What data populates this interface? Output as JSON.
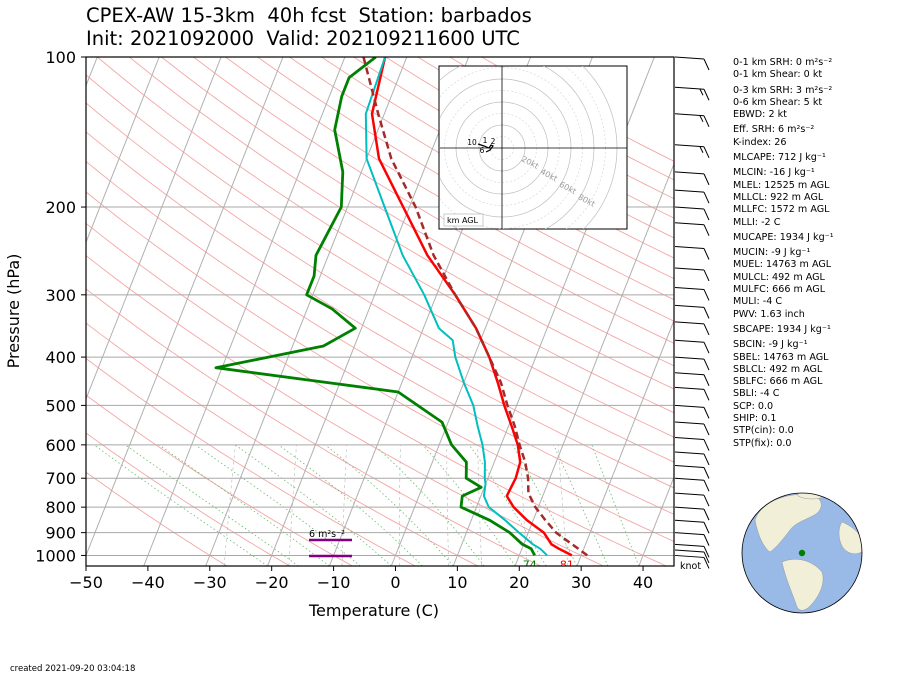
{
  "title": {
    "line1": "CPEX-AW 15-3km  40h fcst  Station: barbados",
    "line2": "Init: 2021092000  Valid: 202109211600 UTC"
  },
  "footer": "created 2021-09-20 03:04:18",
  "stats": [
    "0-1 km SRH: 0 m²s⁻²",
    "0-1 km Shear: 0 kt",
    "0-3 km SRH: 3 m²s⁻²",
    "0-6 km Shear: 5 kt",
    "EBWD: 2 kt",
    "Eff. SRH: 6 m²s⁻²",
    "K-index: 26",
    "MLCAPE: 712 J kg⁻¹",
    "MLCIN: -16 J kg⁻¹",
    "MLEL: 12525 m AGL",
    "MLLCL: 922 m AGL",
    "MLLFC: 1572 m AGL",
    "MLLI: -2 C",
    "MUCAPE: 1934 J kg⁻¹",
    "MUCIN: -9 J kg⁻¹",
    "MUEL: 14763 m AGL",
    "MULCL: 492 m AGL",
    "MULFC: 666 m AGL",
    "MULI: -4 C",
    "PWV: 1.63 inch",
    "SBCAPE: 1934 J kg⁻¹",
    "SBCIN: -9 J kg⁻¹",
    "SBEL: 14763 m AGL",
    "SBLCL: 492 m AGL",
    "SBLFC: 666 m AGL",
    "SBLI: -4 C",
    "SCP: 0.0",
    "SHIP: 0.1",
    "STP(cin): 0.0",
    "STP(fix): 0.0"
  ],
  "chart_data": {
    "type": "line",
    "xlabel": "Temperature (C)",
    "ylabel": "Pressure (hPa)",
    "xlim": [
      -50,
      45
    ],
    "ylim": [
      1050,
      100
    ],
    "y_scale": "log",
    "x_ticks": [
      -50,
      -40,
      -30,
      -20,
      -10,
      0,
      10,
      20,
      30,
      40
    ],
    "y_ticks": [
      100,
      200,
      300,
      400,
      500,
      600,
      700,
      800,
      900,
      1000
    ],
    "grid": true,
    "series": [
      {
        "role": "temperature",
        "color": "#ff0000",
        "points": [
          [
            28.5,
            1000
          ],
          [
            26,
            970
          ],
          [
            24.5,
            950
          ],
          [
            22.5,
            900
          ],
          [
            19,
            850
          ],
          [
            16,
            800
          ],
          [
            14.2,
            760
          ],
          [
            14.5,
            700
          ],
          [
            14.2,
            650
          ],
          [
            12.7,
            600
          ],
          [
            10.5,
            550
          ],
          [
            8,
            500
          ],
          [
            5.5,
            450
          ],
          [
            2.5,
            400
          ],
          [
            -1.5,
            350
          ],
          [
            -7,
            300
          ],
          [
            -14,
            250
          ],
          [
            -21,
            200
          ],
          [
            -28,
            160
          ],
          [
            -32,
            130
          ],
          [
            -33.5,
            100
          ]
        ]
      },
      {
        "role": "dewpoint",
        "color": "#008000",
        "points": [
          [
            22.5,
            1000
          ],
          [
            21.5,
            970
          ],
          [
            19.8,
            950
          ],
          [
            17,
            900
          ],
          [
            13,
            850
          ],
          [
            7.5,
            800
          ],
          [
            7,
            760
          ],
          [
            9.5,
            730
          ],
          [
            6.5,
            700
          ],
          [
            5.5,
            650
          ],
          [
            2,
            600
          ],
          [
            -1,
            540
          ],
          [
            -10,
            470
          ],
          [
            -41,
            420
          ],
          [
            -25,
            380
          ],
          [
            -21,
            350
          ],
          [
            -26,
            320
          ],
          [
            -31,
            300
          ],
          [
            -31,
            275
          ],
          [
            -32,
            250
          ],
          [
            -31,
            200
          ],
          [
            -33,
            170
          ],
          [
            -37,
            140
          ],
          [
            -38,
            120
          ],
          [
            -38,
            110
          ],
          [
            -35,
            100
          ]
        ]
      },
      {
        "role": "wetbulb",
        "color": "#00bfbf",
        "points": [
          [
            24.5,
            1000
          ],
          [
            23,
            970
          ],
          [
            21.5,
            950
          ],
          [
            18.5,
            900
          ],
          [
            15.5,
            850
          ],
          [
            12,
            800
          ],
          [
            10.5,
            760
          ],
          [
            10,
            720
          ],
          [
            9.5,
            700
          ],
          [
            8.5,
            650
          ],
          [
            7,
            600
          ],
          [
            5,
            550
          ],
          [
            3,
            500
          ],
          [
            0,
            450
          ],
          [
            -3,
            400
          ],
          [
            -4.5,
            370
          ],
          [
            -7.5,
            350
          ],
          [
            -12,
            300
          ],
          [
            -18,
            250
          ],
          [
            -24,
            200
          ],
          [
            -30,
            160
          ],
          [
            -33,
            130
          ],
          [
            -33.5,
            100
          ]
        ]
      },
      {
        "role": "parcel",
        "color": "#a52a2a",
        "dashed": true,
        "points": [
          [
            31,
            1000
          ],
          [
            28.5,
            960
          ],
          [
            26.5,
            930
          ],
          [
            24.5,
            900
          ],
          [
            22,
            850
          ],
          [
            19.5,
            800
          ],
          [
            17.5,
            750
          ],
          [
            16.5,
            700
          ],
          [
            15,
            650
          ],
          [
            13,
            600
          ],
          [
            11,
            550
          ],
          [
            8.5,
            500
          ],
          [
            6,
            450
          ],
          [
            2.5,
            400
          ],
          [
            -1.5,
            350
          ],
          [
            -7,
            300
          ],
          [
            -13,
            250
          ],
          [
            -19,
            200
          ],
          [
            -26,
            160
          ],
          [
            -31,
            130
          ],
          [
            -37,
            100
          ]
        ]
      }
    ],
    "surface_labels": {
      "dewpoint": "74",
      "temperature": "81"
    },
    "srh_label": "6 m²s⁻²",
    "wind_units": "knot",
    "wind_barbs": [
      {
        "p": 100,
        "speed": 10
      },
      {
        "p": 115,
        "speed": 15
      },
      {
        "p": 130,
        "speed": 15
      },
      {
        "p": 150,
        "speed": 15
      },
      {
        "p": 170,
        "speed": 10
      },
      {
        "p": 185,
        "speed": 10
      },
      {
        "p": 200,
        "speed": 10
      },
      {
        "p": 215,
        "speed": 10
      },
      {
        "p": 240,
        "speed": 10
      },
      {
        "p": 265,
        "speed": 10
      },
      {
        "p": 290,
        "speed": 10
      },
      {
        "p": 315,
        "speed": 10
      },
      {
        "p": 340,
        "speed": 10
      },
      {
        "p": 370,
        "speed": 10
      },
      {
        "p": 400,
        "speed": 10
      },
      {
        "p": 430,
        "speed": 10
      },
      {
        "p": 460,
        "speed": 10
      },
      {
        "p": 500,
        "speed": 10
      },
      {
        "p": 540,
        "speed": 10
      },
      {
        "p": 580,
        "speed": 10
      },
      {
        "p": 620,
        "speed": 10
      },
      {
        "p": 660,
        "speed": 10
      },
      {
        "p": 700,
        "speed": 10
      },
      {
        "p": 750,
        "speed": 10
      },
      {
        "p": 800,
        "speed": 10
      },
      {
        "p": 850,
        "speed": 10
      },
      {
        "p": 900,
        "speed": 10
      },
      {
        "p": 950,
        "speed": 10
      },
      {
        "p": 975,
        "speed": 10
      },
      {
        "p": 1000,
        "speed": 10
      }
    ],
    "hodograph": {
      "rings_kt": [
        20,
        40,
        60,
        80
      ],
      "ring_labels": [
        "20kt",
        "40kt",
        "60kt",
        "80kt"
      ],
      "height_labels": [
        "10",
        "1",
        "2",
        "6"
      ],
      "legend": "km AGL"
    },
    "globe_marker": {
      "lat": 13.1,
      "lon": -59.6
    }
  }
}
